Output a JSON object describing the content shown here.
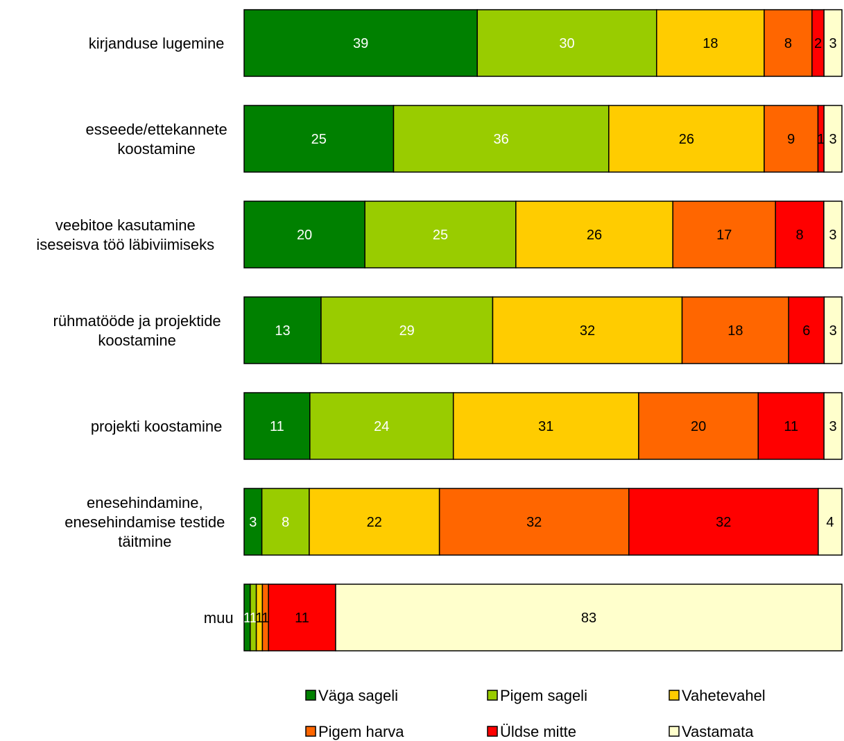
{
  "chart_data": {
    "type": "bar",
    "orientation": "horizontal",
    "stacked": true,
    "percent": true,
    "categories": [
      [
        "kirjanduse lugemine"
      ],
      [
        "esseede/ettekannete",
        "koostamine"
      ],
      [
        "veebitoe kasutamine",
        "iseseisva töö läbiviimiseks"
      ],
      [
        "rühmatööde ja projektide",
        "koostamine"
      ],
      [
        "projekti koostamine"
      ],
      [
        "enesehindamine,",
        "enesehindamise testide",
        "täitmine"
      ],
      [
        "muu"
      ]
    ],
    "series": [
      {
        "name": "Väga sageli",
        "color": "#008000",
        "label_color": "#ffffff",
        "values": [
          39,
          25,
          20,
          13,
          11,
          3,
          1
        ]
      },
      {
        "name": "Pigem sageli",
        "color": "#99cc00",
        "label_color": "#ffffff",
        "values": [
          30,
          36,
          25,
          29,
          24,
          8,
          1
        ]
      },
      {
        "name": "Vahetevahel",
        "color": "#ffcc00",
        "label_color": "#000000",
        "values": [
          18,
          26,
          26,
          32,
          31,
          22,
          1
        ]
      },
      {
        "name": "Pigem harva",
        "color": "#ff6600",
        "label_color": "#000000",
        "values": [
          8,
          9,
          17,
          18,
          20,
          32,
          1
        ]
      },
      {
        "name": "Üldse mitte",
        "color": "#ff0000",
        "label_color": "#000000",
        "values": [
          2,
          1,
          8,
          6,
          11,
          32,
          11
        ]
      },
      {
        "name": "Vastamata",
        "color": "#ffffcc",
        "label_color": "#000000",
        "values": [
          3,
          3,
          3,
          3,
          3,
          4,
          83
        ]
      }
    ],
    "xlim": [
      0,
      100
    ],
    "grid": false,
    "legend_position": "bottom"
  }
}
